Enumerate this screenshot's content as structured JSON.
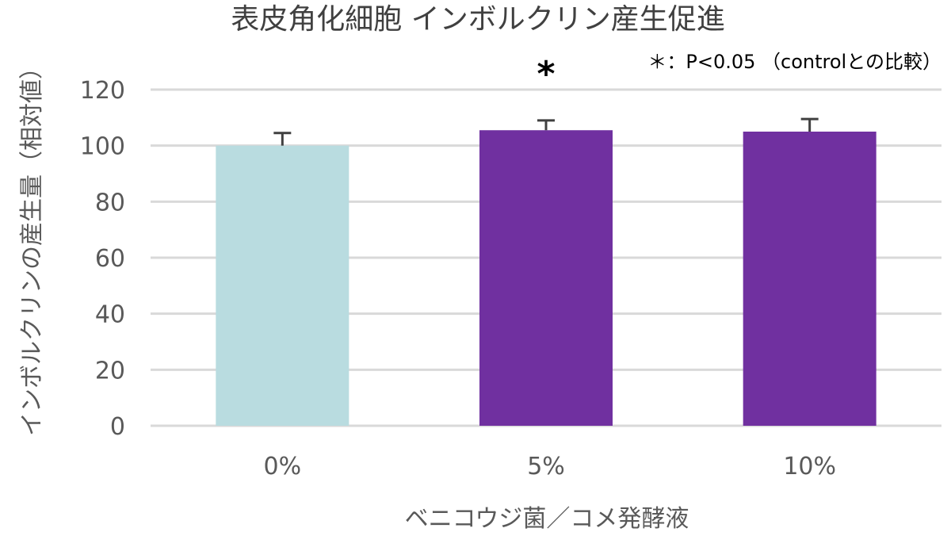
{
  "chart_data": {
    "type": "bar",
    "title": "表皮角化細胞 インボルクリン産生促進",
    "xlabel": "ベニコウジ菌／コメ発酵液",
    "ylabel": "インボルクリンの産生量（相対値）",
    "categories": [
      "0%",
      "5%",
      "10%"
    ],
    "values": [
      100,
      105.5,
      105
    ],
    "errors": [
      4.5,
      3.5,
      4.5
    ],
    "significance": [
      "",
      "*",
      ""
    ],
    "note": "＊：P<0.05 （controlとの比較）",
    "ylim": [
      0,
      120
    ],
    "yticks": [
      "0",
      "20",
      "40",
      "60",
      "80",
      "100",
      "120"
    ],
    "grid": true,
    "legend": "none",
    "colors": [
      "#b9dce0",
      "#7030a0",
      "#7030a0"
    ],
    "gridColor": "#d9d9d9",
    "errorColor": "#404040"
  }
}
